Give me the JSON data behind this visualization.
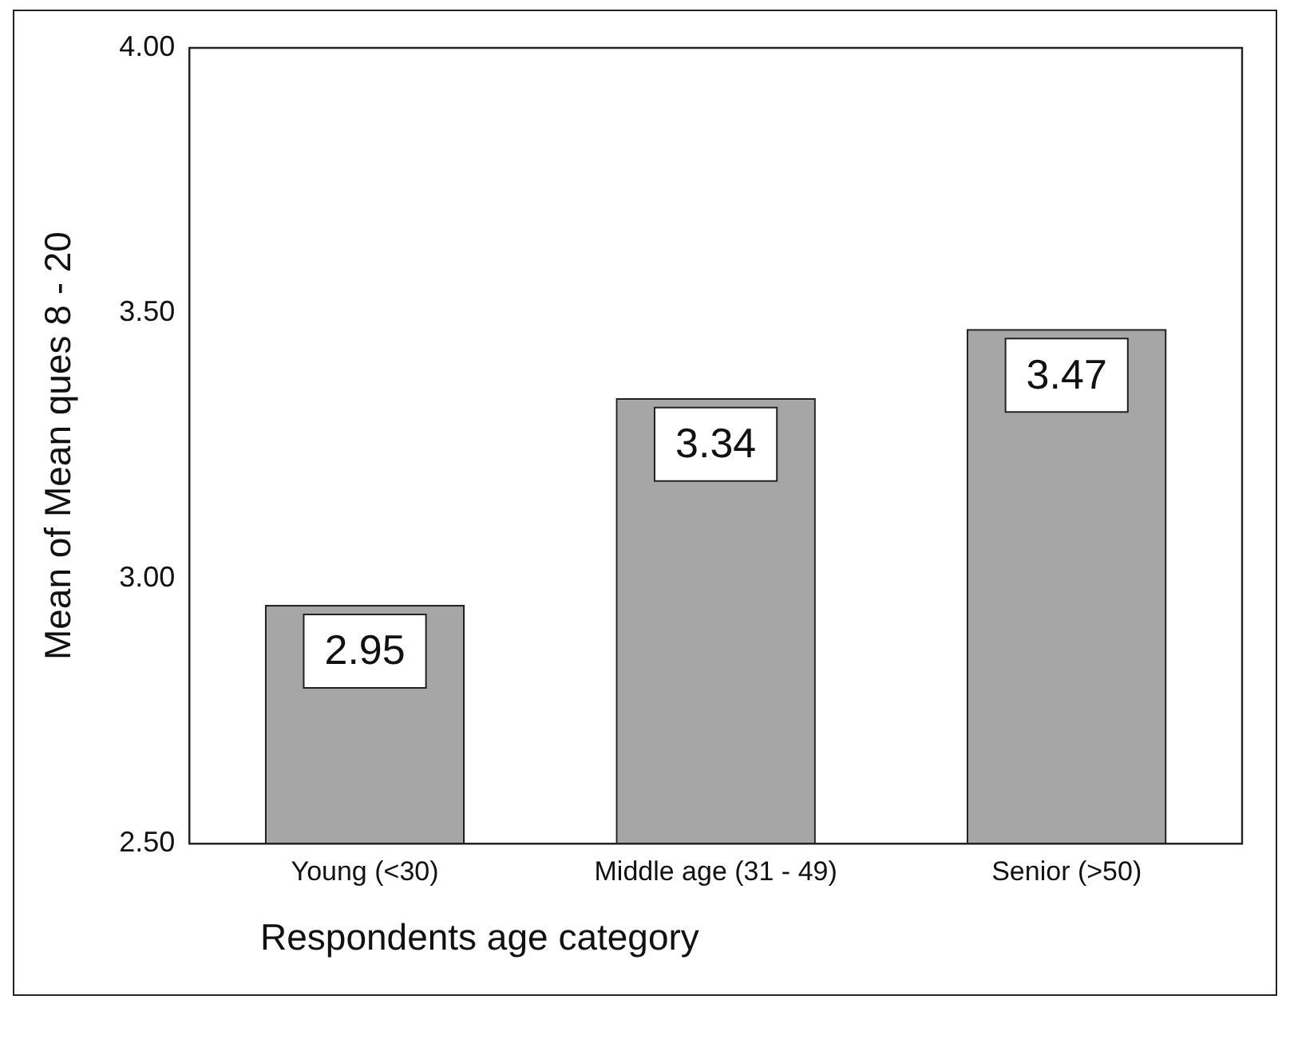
{
  "chart_data": {
    "type": "bar",
    "ylabel": "Mean of Mean ques 8 - 20",
    "xlabel": "Respondents age category",
    "categories": [
      "Young (<30)",
      "Middle age (31 - 49)",
      "Senior (>50)"
    ],
    "values": [
      2.95,
      3.34,
      3.47
    ],
    "color": "#a6a6a6",
    "ylim": [
      2.5,
      4.0
    ],
    "yticks": [
      {
        "value": 2.5,
        "label": "2.50"
      },
      {
        "value": 3.0,
        "label": "3.00"
      },
      {
        "value": 3.5,
        "label": "3.50"
      },
      {
        "value": 4.0,
        "label": "4.00"
      }
    ],
    "grid": false,
    "legend": false,
    "data_labels": true
  }
}
